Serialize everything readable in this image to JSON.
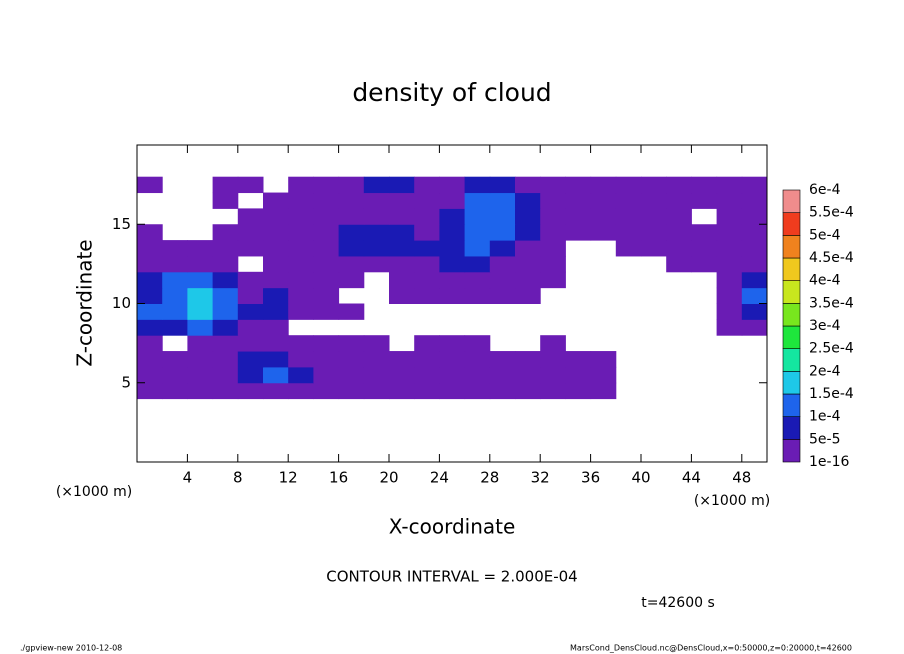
{
  "chart_data": {
    "type": "contour",
    "title": "density of cloud",
    "x_label": "X-coordinate",
    "y_label": "Z-coordinate",
    "x_unit": "(×1000 m)",
    "y_unit": "(×1000 m)",
    "contour_interval": "CONTOUR INTERVAL = 2.000E-04",
    "time_label": "t=42600 s",
    "footer_left": "./gpview-new  2010-12-08",
    "footer_right": "MarsCond_DensCloud.nc@DensCloud,x=0:50000,z=0:20000,t=42600",
    "xlim": [
      0,
      50
    ],
    "ylim": [
      0,
      20
    ],
    "xticks": [
      4,
      8,
      12,
      16,
      20,
      24,
      28,
      32,
      36,
      40,
      44,
      48
    ],
    "yticks": [
      5,
      10,
      15
    ],
    "x": [
      1,
      3,
      5,
      7,
      9,
      11,
      13,
      15,
      17,
      19,
      21,
      23,
      25,
      27,
      29,
      31,
      33,
      35,
      37,
      39,
      41,
      43,
      45,
      47,
      49
    ],
    "z": [
      0.5,
      1.5,
      2.5,
      3.5,
      4.5,
      5.5,
      6.5,
      7.5,
      8.5,
      9.5,
      10.5,
      11.5,
      12.5,
      13.5,
      14.5,
      15.5,
      16.5,
      17.5,
      18.5,
      19.5
    ],
    "levels": [
      {
        "value": 1e-16,
        "label": "1e-16"
      },
      {
        "value": 5e-05,
        "label": "5e-5"
      },
      {
        "value": 0.0001,
        "label": "1e-4"
      },
      {
        "value": 0.00015,
        "label": "1.5e-4"
      },
      {
        "value": 0.0002,
        "label": "2e-4"
      },
      {
        "value": 0.00025,
        "label": "2.5e-4"
      },
      {
        "value": 0.0003,
        "label": "3e-4"
      },
      {
        "value": 0.00035,
        "label": "3.5e-4"
      },
      {
        "value": 0.0004,
        "label": "4e-4"
      },
      {
        "value": 0.00045,
        "label": "4.5e-4"
      },
      {
        "value": 0.0005,
        "label": "5e-4"
      },
      {
        "value": 0.00055,
        "label": "5.5e-4"
      },
      {
        "value": 0.0006,
        "label": "6e-4"
      }
    ],
    "colors": [
      "#6a1cb4",
      "#1a1ab4",
      "#1e64ec",
      "#1ec8e8",
      "#14e6a0",
      "#1ee63c",
      "#78e61e",
      "#c8e61e",
      "#f0c81e",
      "#f0821e",
      "#f03c1e",
      "#f08c8c"
    ],
    "values": [
      [
        null,
        null,
        null,
        null,
        null,
        null,
        null,
        null,
        null,
        null,
        null,
        null,
        null,
        null,
        null,
        null,
        null,
        null,
        null,
        null,
        null,
        null,
        null,
        null,
        null
      ],
      [
        null,
        null,
        null,
        null,
        null,
        null,
        null,
        null,
        null,
        null,
        null,
        null,
        null,
        null,
        null,
        null,
        null,
        null,
        null,
        null,
        null,
        null,
        null,
        null,
        null
      ],
      [
        null,
        null,
        null,
        null,
        null,
        null,
        null,
        null,
        null,
        null,
        null,
        null,
        null,
        null,
        null,
        null,
        null,
        null,
        null,
        null,
        null,
        null,
        null,
        null,
        null
      ],
      [
        null,
        null,
        null,
        null,
        null,
        null,
        null,
        null,
        null,
        null,
        null,
        null,
        null,
        null,
        null,
        null,
        null,
        null,
        null,
        null,
        null,
        null,
        null,
        null,
        null
      ],
      [
        2e-05,
        2e-05,
        2e-05,
        2e-05,
        2e-05,
        2e-05,
        2e-05,
        2e-05,
        2e-05,
        2e-05,
        2e-05,
        2e-05,
        2e-05,
        2e-05,
        2e-05,
        2e-05,
        2e-05,
        2e-05,
        2e-05,
        null,
        null,
        null,
        null,
        null,
        null
      ],
      [
        2e-05,
        2e-05,
        2e-05,
        2e-05,
        7e-05,
        0.00012,
        7e-05,
        2e-05,
        2e-05,
        2e-05,
        2e-05,
        2e-05,
        2e-05,
        2e-05,
        2e-05,
        2e-05,
        2e-05,
        2e-05,
        2e-05,
        null,
        null,
        null,
        null,
        null,
        null
      ],
      [
        2e-05,
        2e-05,
        2e-05,
        2e-05,
        7e-05,
        7e-05,
        2e-05,
        2e-05,
        2e-05,
        2e-05,
        2e-05,
        2e-05,
        2e-05,
        2e-05,
        2e-05,
        2e-05,
        2e-05,
        2e-05,
        2e-05,
        null,
        null,
        null,
        null,
        null,
        null
      ],
      [
        2e-05,
        null,
        2e-05,
        2e-05,
        2e-05,
        2e-05,
        2e-05,
        2e-05,
        2e-05,
        2e-05,
        null,
        2e-05,
        2e-05,
        2e-05,
        null,
        null,
        2e-05,
        null,
        null,
        null,
        null,
        null,
        null,
        null,
        null
      ],
      [
        7e-05,
        7e-05,
        0.00012,
        7e-05,
        2e-05,
        2e-05,
        null,
        null,
        null,
        null,
        null,
        null,
        null,
        null,
        null,
        null,
        null,
        null,
        null,
        null,
        null,
        null,
        null,
        2e-05,
        2e-05
      ],
      [
        0.00012,
        0.00012,
        0.00017,
        0.00012,
        7e-05,
        7e-05,
        2e-05,
        2e-05,
        2e-05,
        null,
        null,
        null,
        null,
        null,
        null,
        null,
        null,
        null,
        null,
        null,
        null,
        null,
        null,
        2e-05,
        7e-05
      ],
      [
        7e-05,
        0.00012,
        0.00017,
        0.00012,
        2e-05,
        7e-05,
        2e-05,
        2e-05,
        null,
        null,
        2e-05,
        2e-05,
        2e-05,
        2e-05,
        2e-05,
        2e-05,
        null,
        null,
        null,
        null,
        null,
        null,
        null,
        2e-05,
        0.00012
      ],
      [
        7e-05,
        0.00012,
        0.00012,
        7e-05,
        2e-05,
        2e-05,
        2e-05,
        2e-05,
        2e-05,
        null,
        2e-05,
        2e-05,
        2e-05,
        2e-05,
        2e-05,
        2e-05,
        2e-05,
        null,
        null,
        null,
        null,
        null,
        null,
        2e-05,
        7e-05
      ],
      [
        2e-05,
        2e-05,
        2e-05,
        2e-05,
        null,
        2e-05,
        2e-05,
        2e-05,
        2e-05,
        2e-05,
        2e-05,
        2e-05,
        7e-05,
        7e-05,
        2e-05,
        2e-05,
        2e-05,
        null,
        null,
        null,
        null,
        2e-05,
        2e-05,
        2e-05,
        2e-05
      ],
      [
        2e-05,
        2e-05,
        2e-05,
        2e-05,
        2e-05,
        2e-05,
        2e-05,
        2e-05,
        7e-05,
        7e-05,
        7e-05,
        7e-05,
        7e-05,
        0.00012,
        7e-05,
        2e-05,
        2e-05,
        null,
        null,
        2e-05,
        2e-05,
        2e-05,
        2e-05,
        2e-05,
        2e-05
      ],
      [
        2e-05,
        null,
        null,
        2e-05,
        2e-05,
        2e-05,
        2e-05,
        2e-05,
        7e-05,
        7e-05,
        7e-05,
        2e-05,
        7e-05,
        0.00012,
        0.00012,
        7e-05,
        2e-05,
        2e-05,
        2e-05,
        2e-05,
        2e-05,
        2e-05,
        2e-05,
        2e-05,
        2e-05
      ],
      [
        null,
        null,
        null,
        null,
        2e-05,
        2e-05,
        2e-05,
        2e-05,
        2e-05,
        2e-05,
        2e-05,
        2e-05,
        7e-05,
        0.00012,
        0.00012,
        7e-05,
        2e-05,
        2e-05,
        2e-05,
        2e-05,
        2e-05,
        2e-05,
        null,
        2e-05,
        2e-05
      ],
      [
        null,
        null,
        null,
        2e-05,
        null,
        2e-05,
        2e-05,
        2e-05,
        2e-05,
        2e-05,
        2e-05,
        2e-05,
        2e-05,
        0.00012,
        0.00012,
        7e-05,
        2e-05,
        2e-05,
        2e-05,
        2e-05,
        2e-05,
        2e-05,
        2e-05,
        2e-05,
        2e-05
      ],
      [
        2e-05,
        null,
        null,
        2e-05,
        2e-05,
        null,
        2e-05,
        2e-05,
        2e-05,
        7e-05,
        7e-05,
        2e-05,
        2e-05,
        7e-05,
        7e-05,
        2e-05,
        2e-05,
        2e-05,
        2e-05,
        2e-05,
        2e-05,
        2e-05,
        2e-05,
        2e-05,
        2e-05
      ],
      [
        null,
        null,
        null,
        null,
        null,
        null,
        null,
        null,
        null,
        null,
        null,
        null,
        null,
        null,
        null,
        null,
        null,
        null,
        null,
        null,
        null,
        null,
        null,
        null,
        null
      ],
      [
        null,
        null,
        null,
        null,
        null,
        null,
        null,
        null,
        null,
        null,
        null,
        null,
        null,
        null,
        null,
        null,
        null,
        null,
        null,
        null,
        null,
        null,
        null,
        null,
        null
      ]
    ]
  }
}
